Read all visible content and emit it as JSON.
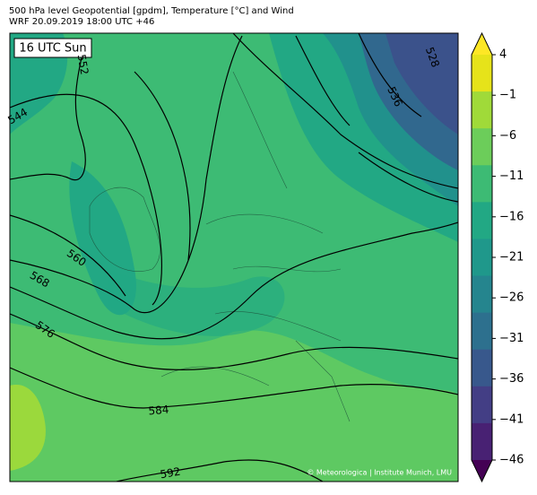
{
  "header": {
    "title_line1": "500 hPa level Geopotential [gpdm], Temperature [°C] and Wind",
    "title_line2": "WRF 20.09.2019 18:00 UTC +46"
  },
  "time_label": "16 UTC Sun",
  "colorbar": {
    "ticks": [
      "4",
      "−1",
      "−6",
      "−11",
      "−16",
      "−21",
      "−26",
      "−31",
      "−36",
      "−41",
      "−46"
    ]
  },
  "contour_labels": [
    "528",
    "536",
    "544",
    "552",
    "560",
    "568",
    "576",
    "584",
    "592"
  ],
  "copyright": "© Meteorologica | Institute Munich, LMU"
}
